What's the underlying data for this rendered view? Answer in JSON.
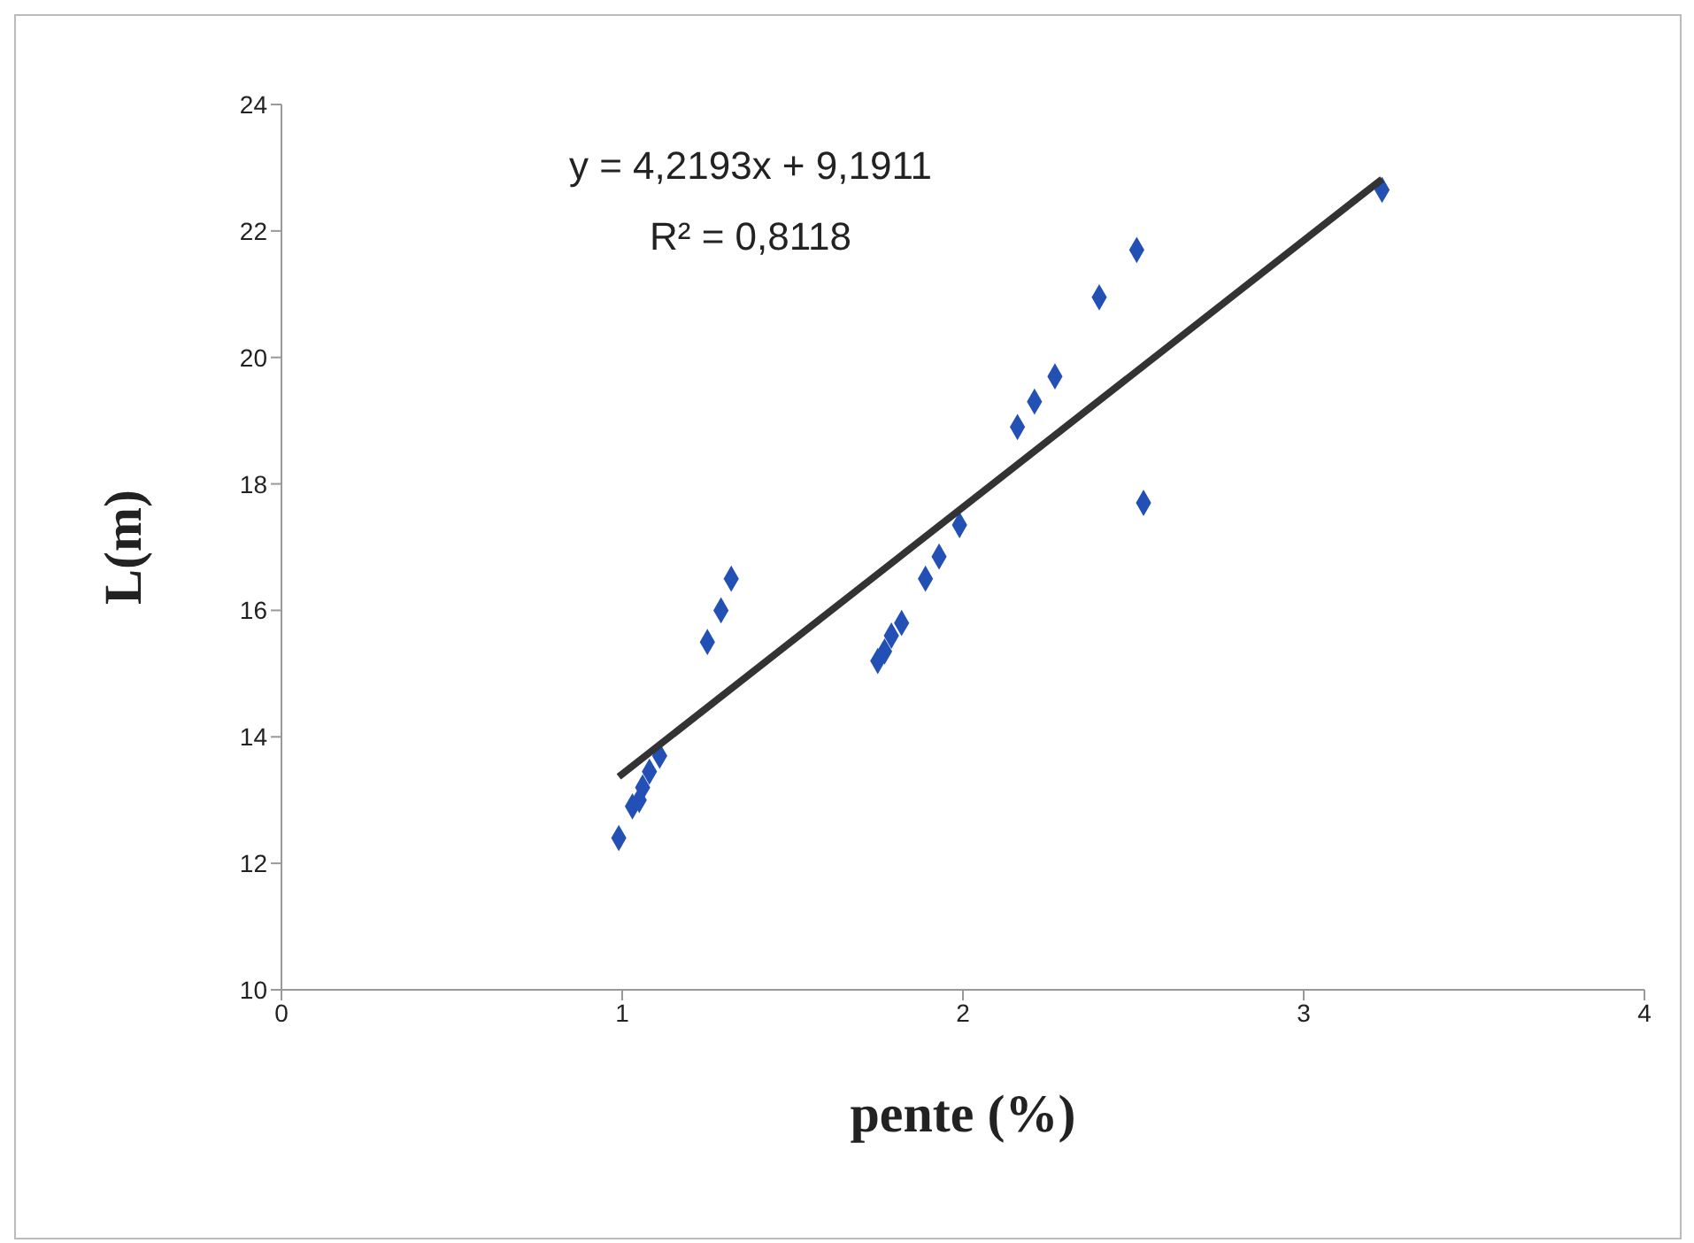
{
  "chart_data": {
    "type": "scatter",
    "xlabel": "pente (%)",
    "ylabel": "L(m)",
    "xlim": [
      0,
      4
    ],
    "xticks": [
      0,
      1,
      2,
      3,
      4
    ],
    "ylim": [
      10,
      24
    ],
    "yticks": [
      10,
      12,
      14,
      16,
      18,
      20,
      22,
      24
    ],
    "marker": "diamond",
    "annotations": [
      "y = 4,2193x + 9,1911",
      "R² = 0,8118"
    ],
    "series": [
      {
        "color": "#2350b4",
        "x": [
          0.99,
          1.03,
          1.05,
          1.06,
          1.08,
          1.11,
          1.25,
          1.29,
          1.32,
          1.75,
          1.77,
          1.79,
          1.82,
          1.89,
          1.93,
          1.99,
          2.16,
          2.21,
          2.27,
          2.4,
          2.51,
          2.53,
          3.23
        ],
        "values": [
          12.4,
          12.9,
          13.0,
          13.2,
          13.45,
          13.7,
          15.5,
          16.0,
          16.5,
          15.2,
          15.35,
          15.6,
          15.8,
          16.5,
          16.85,
          17.35,
          18.9,
          19.3,
          19.7,
          20.95,
          21.7,
          17.7,
          22.65
        ]
      },
      {
        "type": "line",
        "color": "#333333",
        "marker": "none",
        "x": [
          0.99,
          3.23
        ],
        "values": [
          13.37,
          22.82
        ]
      }
    ]
  }
}
